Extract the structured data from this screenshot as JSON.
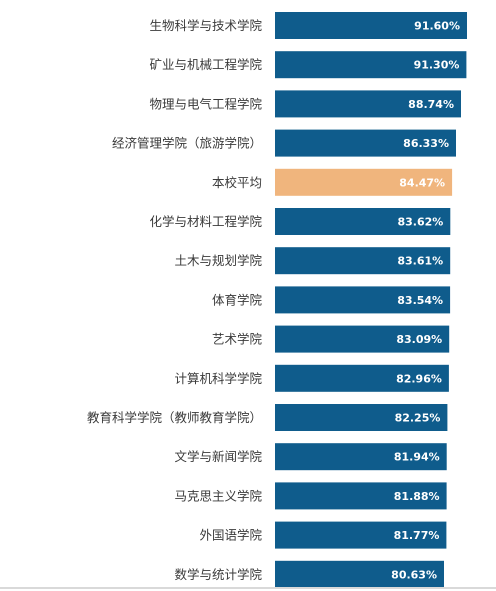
{
  "chart_data": {
    "type": "bar",
    "orientation": "horizontal",
    "categories": [
      "生物科学与技术学院",
      "矿业与机械工程学院",
      "物理与电气工程学院",
      "经济管理学院（旅游学院）",
      "本校平均",
      "化学与材料工程学院",
      "土木与规划学院",
      "体育学院",
      "艺术学院",
      "计算机科学学院",
      "教育科学学院（教师教育学院）",
      "文学与新闻学院",
      "马克思主义学院",
      "外国语学院",
      "数学与统计学院"
    ],
    "values": [
      91.6,
      91.3,
      88.74,
      86.33,
      84.47,
      83.62,
      83.61,
      83.54,
      83.09,
      82.96,
      82.25,
      81.94,
      81.88,
      81.77,
      80.63
    ],
    "value_labels": [
      "91.60%",
      "91.30%",
      "88.74%",
      "86.33%",
      "84.47%",
      "83.62%",
      "83.61%",
      "83.54%",
      "83.09%",
      "82.96%",
      "82.25%",
      "81.94%",
      "81.88%",
      "81.77%",
      "80.63%"
    ],
    "highlight_category": "本校平均",
    "colors": {
      "bar": "#0f5c8c",
      "highlight": "#f0b57d",
      "label_text": "#ffffff"
    },
    "grid": false,
    "legend": "none"
  }
}
